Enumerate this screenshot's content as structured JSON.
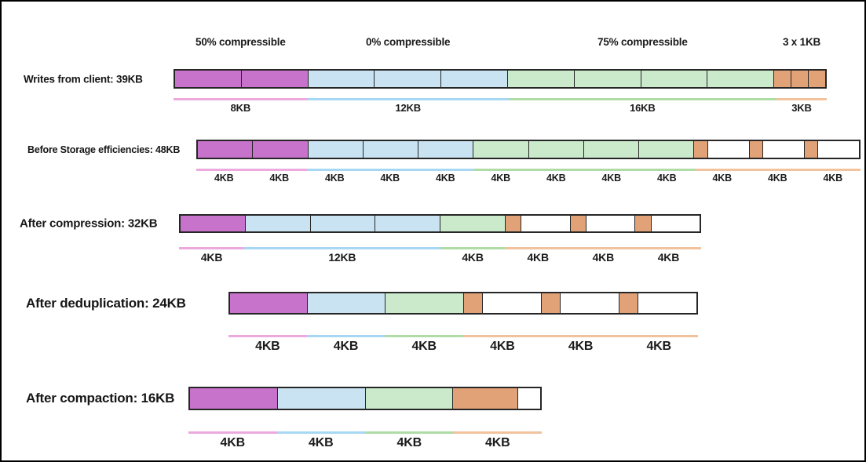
{
  "diagram_title": "Storage efficiencies",
  "colors": {
    "fill": {
      "magenta": "#C873CB",
      "blue": "#C9E3F2",
      "green": "#CAEACB",
      "orange": "#E2A277",
      "white": "#FFFFFF"
    },
    "underline": {
      "magenta": "#ECA9DE",
      "blue": "#A6D7F3",
      "green": "#AFDCA5",
      "orange": "#F2C29D"
    },
    "cell_border": "#262626",
    "canvas_border": "#000000",
    "text": "#1A1A1A"
  },
  "rows": [
    {
      "label": "Writes from client: 39KB",
      "total_kb": 39,
      "headers": [
        {
          "span_kb": 8,
          "text": "50% compressible"
        },
        {
          "span_kb": 12,
          "text": "0% compressible"
        },
        {
          "span_kb": 16,
          "text": "75% compressible"
        },
        {
          "span_kb": 3,
          "text": "3 x 1KB"
        }
      ],
      "cells": [
        {
          "kb": 4,
          "color": "magenta"
        },
        {
          "kb": 4,
          "color": "magenta"
        },
        {
          "kb": 4,
          "color": "blue"
        },
        {
          "kb": 4,
          "color": "blue"
        },
        {
          "kb": 4,
          "color": "blue"
        },
        {
          "kb": 4,
          "color": "green"
        },
        {
          "kb": 4,
          "color": "green"
        },
        {
          "kb": 4,
          "color": "green"
        },
        {
          "kb": 4,
          "color": "green"
        },
        {
          "kb": 1,
          "color": "orange"
        },
        {
          "kb": 1,
          "color": "orange"
        },
        {
          "kb": 1,
          "color": "orange"
        }
      ],
      "underline": [
        {
          "span_kb": 8,
          "color": "magenta"
        },
        {
          "span_kb": 12,
          "color": "blue"
        },
        {
          "span_kb": 16,
          "color": "green"
        },
        {
          "span_kb": 3,
          "color": "orange"
        }
      ],
      "size_labels": [
        {
          "span_kb": 8,
          "text": "8KB"
        },
        {
          "span_kb": 12,
          "text": "12KB"
        },
        {
          "span_kb": 16,
          "text": "16KB"
        },
        {
          "span_kb": 3,
          "text": "3KB"
        }
      ]
    },
    {
      "label": "Before Storage efficiencies: 48KB",
      "total_kb": 48,
      "headers": [],
      "cells": [
        {
          "kb": 4,
          "color": "magenta"
        },
        {
          "kb": 4,
          "color": "magenta"
        },
        {
          "kb": 4,
          "color": "blue"
        },
        {
          "kb": 4,
          "color": "blue"
        },
        {
          "kb": 4,
          "color": "blue"
        },
        {
          "kb": 4,
          "color": "green"
        },
        {
          "kb": 4,
          "color": "green"
        },
        {
          "kb": 4,
          "color": "green"
        },
        {
          "kb": 4,
          "color": "green"
        },
        {
          "kb": 4,
          "color": "white",
          "fill": {
            "kb": 1,
            "color": "orange"
          }
        },
        {
          "kb": 4,
          "color": "white",
          "fill": {
            "kb": 1,
            "color": "orange"
          }
        },
        {
          "kb": 4,
          "color": "white",
          "fill": {
            "kb": 1,
            "color": "orange"
          }
        }
      ],
      "underline": [
        {
          "span_kb": 8,
          "color": "magenta"
        },
        {
          "span_kb": 12,
          "color": "blue"
        },
        {
          "span_kb": 16,
          "color": "green"
        },
        {
          "span_kb": 12,
          "color": "orange"
        }
      ],
      "size_labels": [
        {
          "span_kb": 4,
          "text": "4KB"
        },
        {
          "span_kb": 4,
          "text": "4KB"
        },
        {
          "span_kb": 4,
          "text": "4KB"
        },
        {
          "span_kb": 4,
          "text": "4KB"
        },
        {
          "span_kb": 4,
          "text": "4KB"
        },
        {
          "span_kb": 4,
          "text": "4KB"
        },
        {
          "span_kb": 4,
          "text": "4KB"
        },
        {
          "span_kb": 4,
          "text": "4KB"
        },
        {
          "span_kb": 4,
          "text": "4KB"
        },
        {
          "span_kb": 4,
          "text": "4KB"
        },
        {
          "span_kb": 4,
          "text": "4KB"
        },
        {
          "span_kb": 4,
          "text": "4KB"
        }
      ]
    },
    {
      "label": "After compression: 32KB",
      "total_kb": 32,
      "headers": [],
      "cells": [
        {
          "kb": 4,
          "color": "magenta"
        },
        {
          "kb": 4,
          "color": "blue"
        },
        {
          "kb": 4,
          "color": "blue"
        },
        {
          "kb": 4,
          "color": "blue"
        },
        {
          "kb": 4,
          "color": "green"
        },
        {
          "kb": 4,
          "color": "white",
          "fill": {
            "kb": 1,
            "color": "orange"
          }
        },
        {
          "kb": 4,
          "color": "white",
          "fill": {
            "kb": 1,
            "color": "orange"
          }
        },
        {
          "kb": 4,
          "color": "white",
          "fill": {
            "kb": 1,
            "color": "orange"
          }
        }
      ],
      "underline": [
        {
          "span_kb": 4,
          "color": "magenta"
        },
        {
          "span_kb": 12,
          "color": "blue"
        },
        {
          "span_kb": 4,
          "color": "green"
        },
        {
          "span_kb": 12,
          "color": "orange"
        }
      ],
      "size_labels": [
        {
          "span_kb": 4,
          "text": "4KB"
        },
        {
          "span_kb": 12,
          "text": "12KB"
        },
        {
          "span_kb": 4,
          "text": "4KB"
        },
        {
          "span_kb": 4,
          "text": "4KB"
        },
        {
          "span_kb": 4,
          "text": "4KB"
        },
        {
          "span_kb": 4,
          "text": "4KB"
        }
      ]
    },
    {
      "label": "After deduplication: 24KB",
      "total_kb": 24,
      "headers": [],
      "cells": [
        {
          "kb": 4,
          "color": "magenta"
        },
        {
          "kb": 4,
          "color": "blue"
        },
        {
          "kb": 4,
          "color": "green"
        },
        {
          "kb": 4,
          "color": "white",
          "fill": {
            "kb": 1,
            "color": "orange"
          }
        },
        {
          "kb": 4,
          "color": "white",
          "fill": {
            "kb": 1,
            "color": "orange"
          }
        },
        {
          "kb": 4,
          "color": "white",
          "fill": {
            "kb": 1,
            "color": "orange"
          }
        }
      ],
      "underline": [
        {
          "span_kb": 4,
          "color": "magenta"
        },
        {
          "span_kb": 4,
          "color": "blue"
        },
        {
          "span_kb": 4,
          "color": "green"
        },
        {
          "span_kb": 12,
          "color": "orange"
        }
      ],
      "size_labels": [
        {
          "span_kb": 4,
          "text": "4KB"
        },
        {
          "span_kb": 4,
          "text": "4KB"
        },
        {
          "span_kb": 4,
          "text": "4KB"
        },
        {
          "span_kb": 4,
          "text": "4KB"
        },
        {
          "span_kb": 4,
          "text": "4KB"
        },
        {
          "span_kb": 4,
          "text": "4KB"
        }
      ]
    },
    {
      "label": "After compaction: 16KB",
      "total_kb": 16,
      "headers": [],
      "cells": [
        {
          "kb": 4,
          "color": "magenta"
        },
        {
          "kb": 4,
          "color": "blue"
        },
        {
          "kb": 4,
          "color": "green"
        },
        {
          "kb": 4,
          "color": "white",
          "fill": {
            "kb": 3,
            "color": "orange"
          }
        }
      ],
      "underline": [
        {
          "span_kb": 4,
          "color": "magenta"
        },
        {
          "span_kb": 4,
          "color": "blue"
        },
        {
          "span_kb": 4,
          "color": "green"
        },
        {
          "span_kb": 4,
          "color": "orange"
        }
      ],
      "size_labels": [
        {
          "span_kb": 4,
          "text": "4KB"
        },
        {
          "span_kb": 4,
          "text": "4KB"
        },
        {
          "span_kb": 4,
          "text": "4KB"
        },
        {
          "span_kb": 4,
          "text": "4KB"
        }
      ]
    }
  ]
}
